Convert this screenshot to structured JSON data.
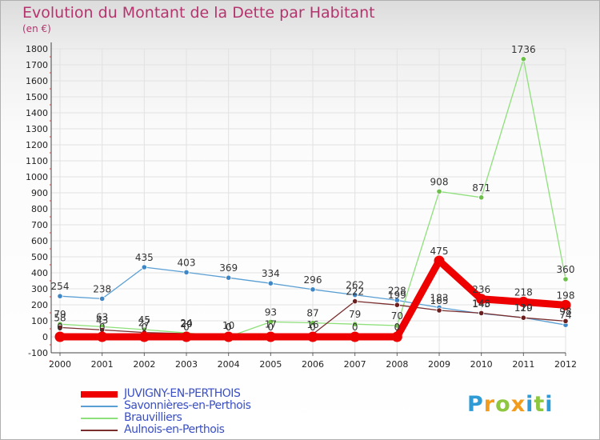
{
  "header": {
    "title": "Evolution du Montant de la Dette par Habitant",
    "subtitle": "(en €)"
  },
  "logo": {
    "text": "Proxiti",
    "letters": [
      {
        "ch": "P",
        "color": "#2f9bd6"
      },
      {
        "ch": "r",
        "color": "#f29b1c"
      },
      {
        "ch": "o",
        "color": "#8dc63f"
      },
      {
        "ch": "x",
        "color": "#f29b1c"
      },
      {
        "ch": "i",
        "color": "#2f9bd6"
      },
      {
        "ch": "t",
        "color": "#8dc63f"
      },
      {
        "ch": "i",
        "color": "#2f9bd6"
      }
    ]
  },
  "chart_data": {
    "type": "line",
    "title": "Evolution du Montant de la Dette par Habitant",
    "subtitle": "(en €)",
    "x": [
      "2000",
      "2001",
      "2002",
      "2003",
      "2004",
      "2005",
      "2006",
      "2007",
      "2008",
      "2009",
      "2010",
      "2011",
      "2012"
    ],
    "ylim": [
      -100,
      1800
    ],
    "yticks": [
      -100,
      0,
      100,
      200,
      300,
      400,
      500,
      600,
      700,
      800,
      900,
      1000,
      1100,
      1200,
      1300,
      1400,
      1500,
      1600,
      1700,
      1800
    ],
    "grid": true,
    "legend_position": "bottom-left",
    "series": [
      {
        "name": "Savonnières-en-Perthois",
        "color": "#5a9fd4",
        "marker_color": "#3f86c6",
        "values": [
          254,
          238,
          435,
          403,
          369,
          334,
          296,
          262,
          228,
          183,
          145,
          120,
          74
        ],
        "labels": [
          "254",
          "238",
          "435",
          "403",
          "369",
          "334",
          "296",
          "262",
          "228",
          "183",
          "145",
          "120",
          "74"
        ]
      },
      {
        "name": "Brauvilliers",
        "color": "#8ee07a",
        "marker_color": "#6cc04a",
        "values": [
          79,
          63,
          45,
          24,
          0,
          93,
          87,
          79,
          70,
          908,
          871,
          1736,
          360
        ],
        "labels": [
          "79",
          "63",
          "45",
          "24",
          "0",
          "93",
          "87",
          "79",
          "70",
          "908",
          "871",
          "1736",
          "360"
        ]
      },
      {
        "name": "Aulnois-en-Perthois",
        "color": "#7a2e2e",
        "marker_color": "#6b1f1f",
        "values": [
          58,
          43,
          27,
          20,
          10,
          17,
          16,
          222,
          199,
          165,
          148,
          119,
          98
        ],
        "labels": [
          "58",
          "43",
          "27",
          "20",
          "10",
          "17",
          "16",
          "222",
          "199",
          "165",
          "148",
          "119",
          "98"
        ]
      },
      {
        "name": "JUVIGNY-EN-PERTHOIS",
        "color": "#ee0000",
        "marker_color": "#ee0000",
        "values": [
          0,
          0,
          0,
          0,
          0,
          0,
          0,
          0,
          0,
          475,
          236,
          218,
          198
        ],
        "labels": [
          "0",
          "0",
          "0",
          "0",
          "0",
          "0",
          "0",
          "0",
          "0",
          "475",
          "236",
          "218",
          "198"
        ]
      }
    ],
    "legend_order": [
      "JUVIGNY-EN-PERTHOIS",
      "Savonnières-en-Perthois",
      "Brauvilliers",
      "Aulnois-en-Perthois"
    ]
  }
}
